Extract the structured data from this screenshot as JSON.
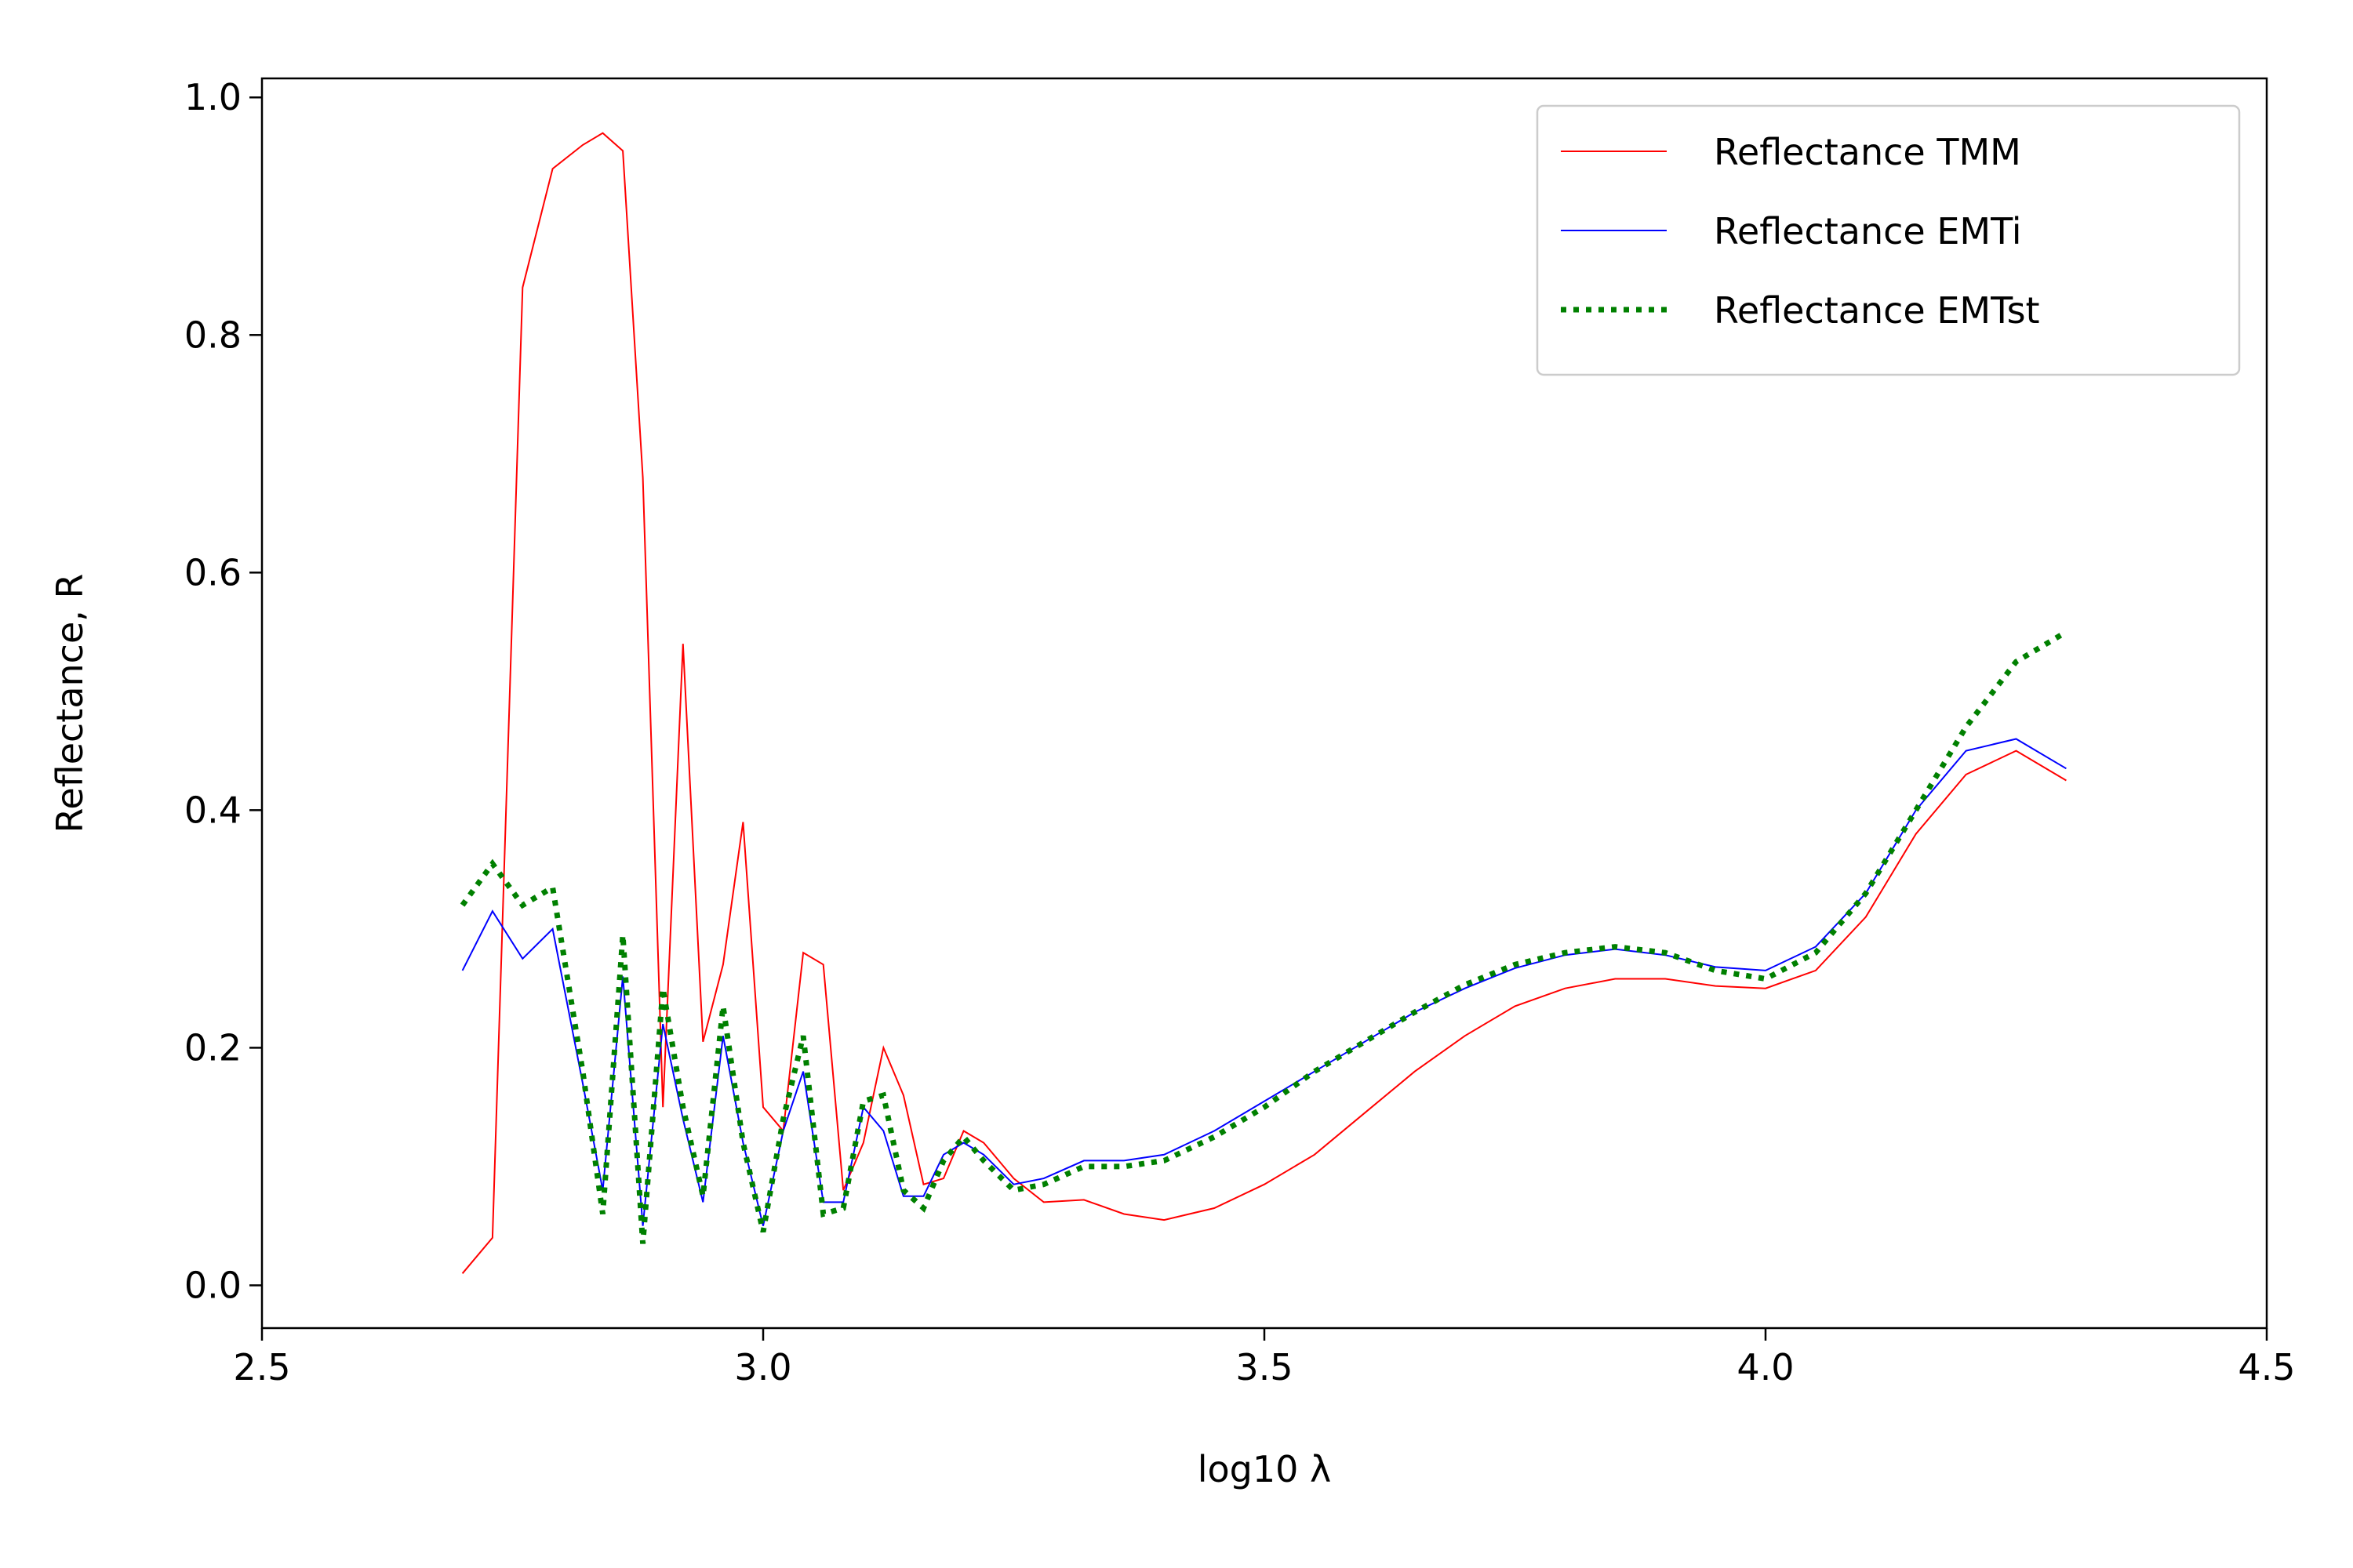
{
  "chart_data": {
    "type": "line",
    "xlabel": "log10 λ",
    "ylabel": "Reflectance, R",
    "x": [
      2.7,
      2.73,
      2.76,
      2.79,
      2.82,
      2.84,
      2.86,
      2.88,
      2.9,
      2.92,
      2.94,
      2.96,
      2.98,
      3.0,
      3.02,
      3.04,
      3.06,
      3.08,
      3.1,
      3.12,
      3.14,
      3.16,
      3.18,
      3.2,
      3.22,
      3.25,
      3.28,
      3.32,
      3.36,
      3.4,
      3.45,
      3.5,
      3.55,
      3.6,
      3.65,
      3.7,
      3.75,
      3.8,
      3.85,
      3.9,
      3.95,
      4.0,
      4.05,
      4.1,
      4.15,
      4.2,
      4.25,
      4.3
    ],
    "series": [
      {
        "name": "Reflectance TMM",
        "color": "#ff0000",
        "style": "solid",
        "values": [
          0.01,
          0.04,
          0.84,
          0.94,
          0.96,
          0.97,
          0.955,
          0.68,
          0.15,
          0.54,
          0.205,
          0.27,
          0.39,
          0.15,
          0.13,
          0.28,
          0.27,
          0.08,
          0.12,
          0.2,
          0.16,
          0.085,
          0.09,
          0.13,
          0.12,
          0.09,
          0.07,
          0.072,
          0.06,
          0.055,
          0.065,
          0.085,
          0.11,
          0.145,
          0.18,
          0.21,
          0.235,
          0.25,
          0.258,
          0.258,
          0.252,
          0.25,
          0.265,
          0.31,
          0.38,
          0.43,
          0.45,
          0.425
        ]
      },
      {
        "name": "Reflectance EMTi",
        "color": "#0000ff",
        "style": "solid",
        "values": [
          0.265,
          0.315,
          0.275,
          0.3,
          0.17,
          0.08,
          0.26,
          0.05,
          0.22,
          0.14,
          0.07,
          0.21,
          0.12,
          0.05,
          0.13,
          0.18,
          0.07,
          0.07,
          0.15,
          0.13,
          0.075,
          0.075,
          0.11,
          0.12,
          0.11,
          0.085,
          0.09,
          0.105,
          0.105,
          0.11,
          0.13,
          0.155,
          0.18,
          0.205,
          0.23,
          0.25,
          0.267,
          0.278,
          0.283,
          0.278,
          0.268,
          0.265,
          0.285,
          0.33,
          0.4,
          0.45,
          0.46,
          0.435
        ]
      },
      {
        "name": "Reflectance EMTst",
        "color": "#008000",
        "style": "dotted",
        "values": [
          0.32,
          0.355,
          0.32,
          0.335,
          0.18,
          0.06,
          0.295,
          0.035,
          0.25,
          0.15,
          0.075,
          0.235,
          0.12,
          0.045,
          0.14,
          0.21,
          0.06,
          0.065,
          0.155,
          0.16,
          0.08,
          0.065,
          0.105,
          0.125,
          0.105,
          0.08,
          0.085,
          0.1,
          0.1,
          0.105,
          0.125,
          0.15,
          0.18,
          0.205,
          0.23,
          0.253,
          0.27,
          0.28,
          0.285,
          0.28,
          0.265,
          0.258,
          0.28,
          0.33,
          0.4,
          0.47,
          0.525,
          0.55
        ]
      }
    ],
    "xlim": [
      2.5,
      4.5
    ],
    "ylim": [
      -0.036,
      1.016
    ],
    "xticks": [
      2.5,
      {
        "value": 3,
        "label": "3.0"
      },
      3.5,
      {
        "value": 4,
        "label": "4.0"
      },
      4.5
    ],
    "yticks": [
      {
        "value": 0,
        "label": "0.0"
      },
      0.2,
      0.4,
      0.6,
      0.8,
      {
        "value": 1,
        "label": "1.0"
      }
    ],
    "grid": false,
    "legend": "upper right"
  }
}
